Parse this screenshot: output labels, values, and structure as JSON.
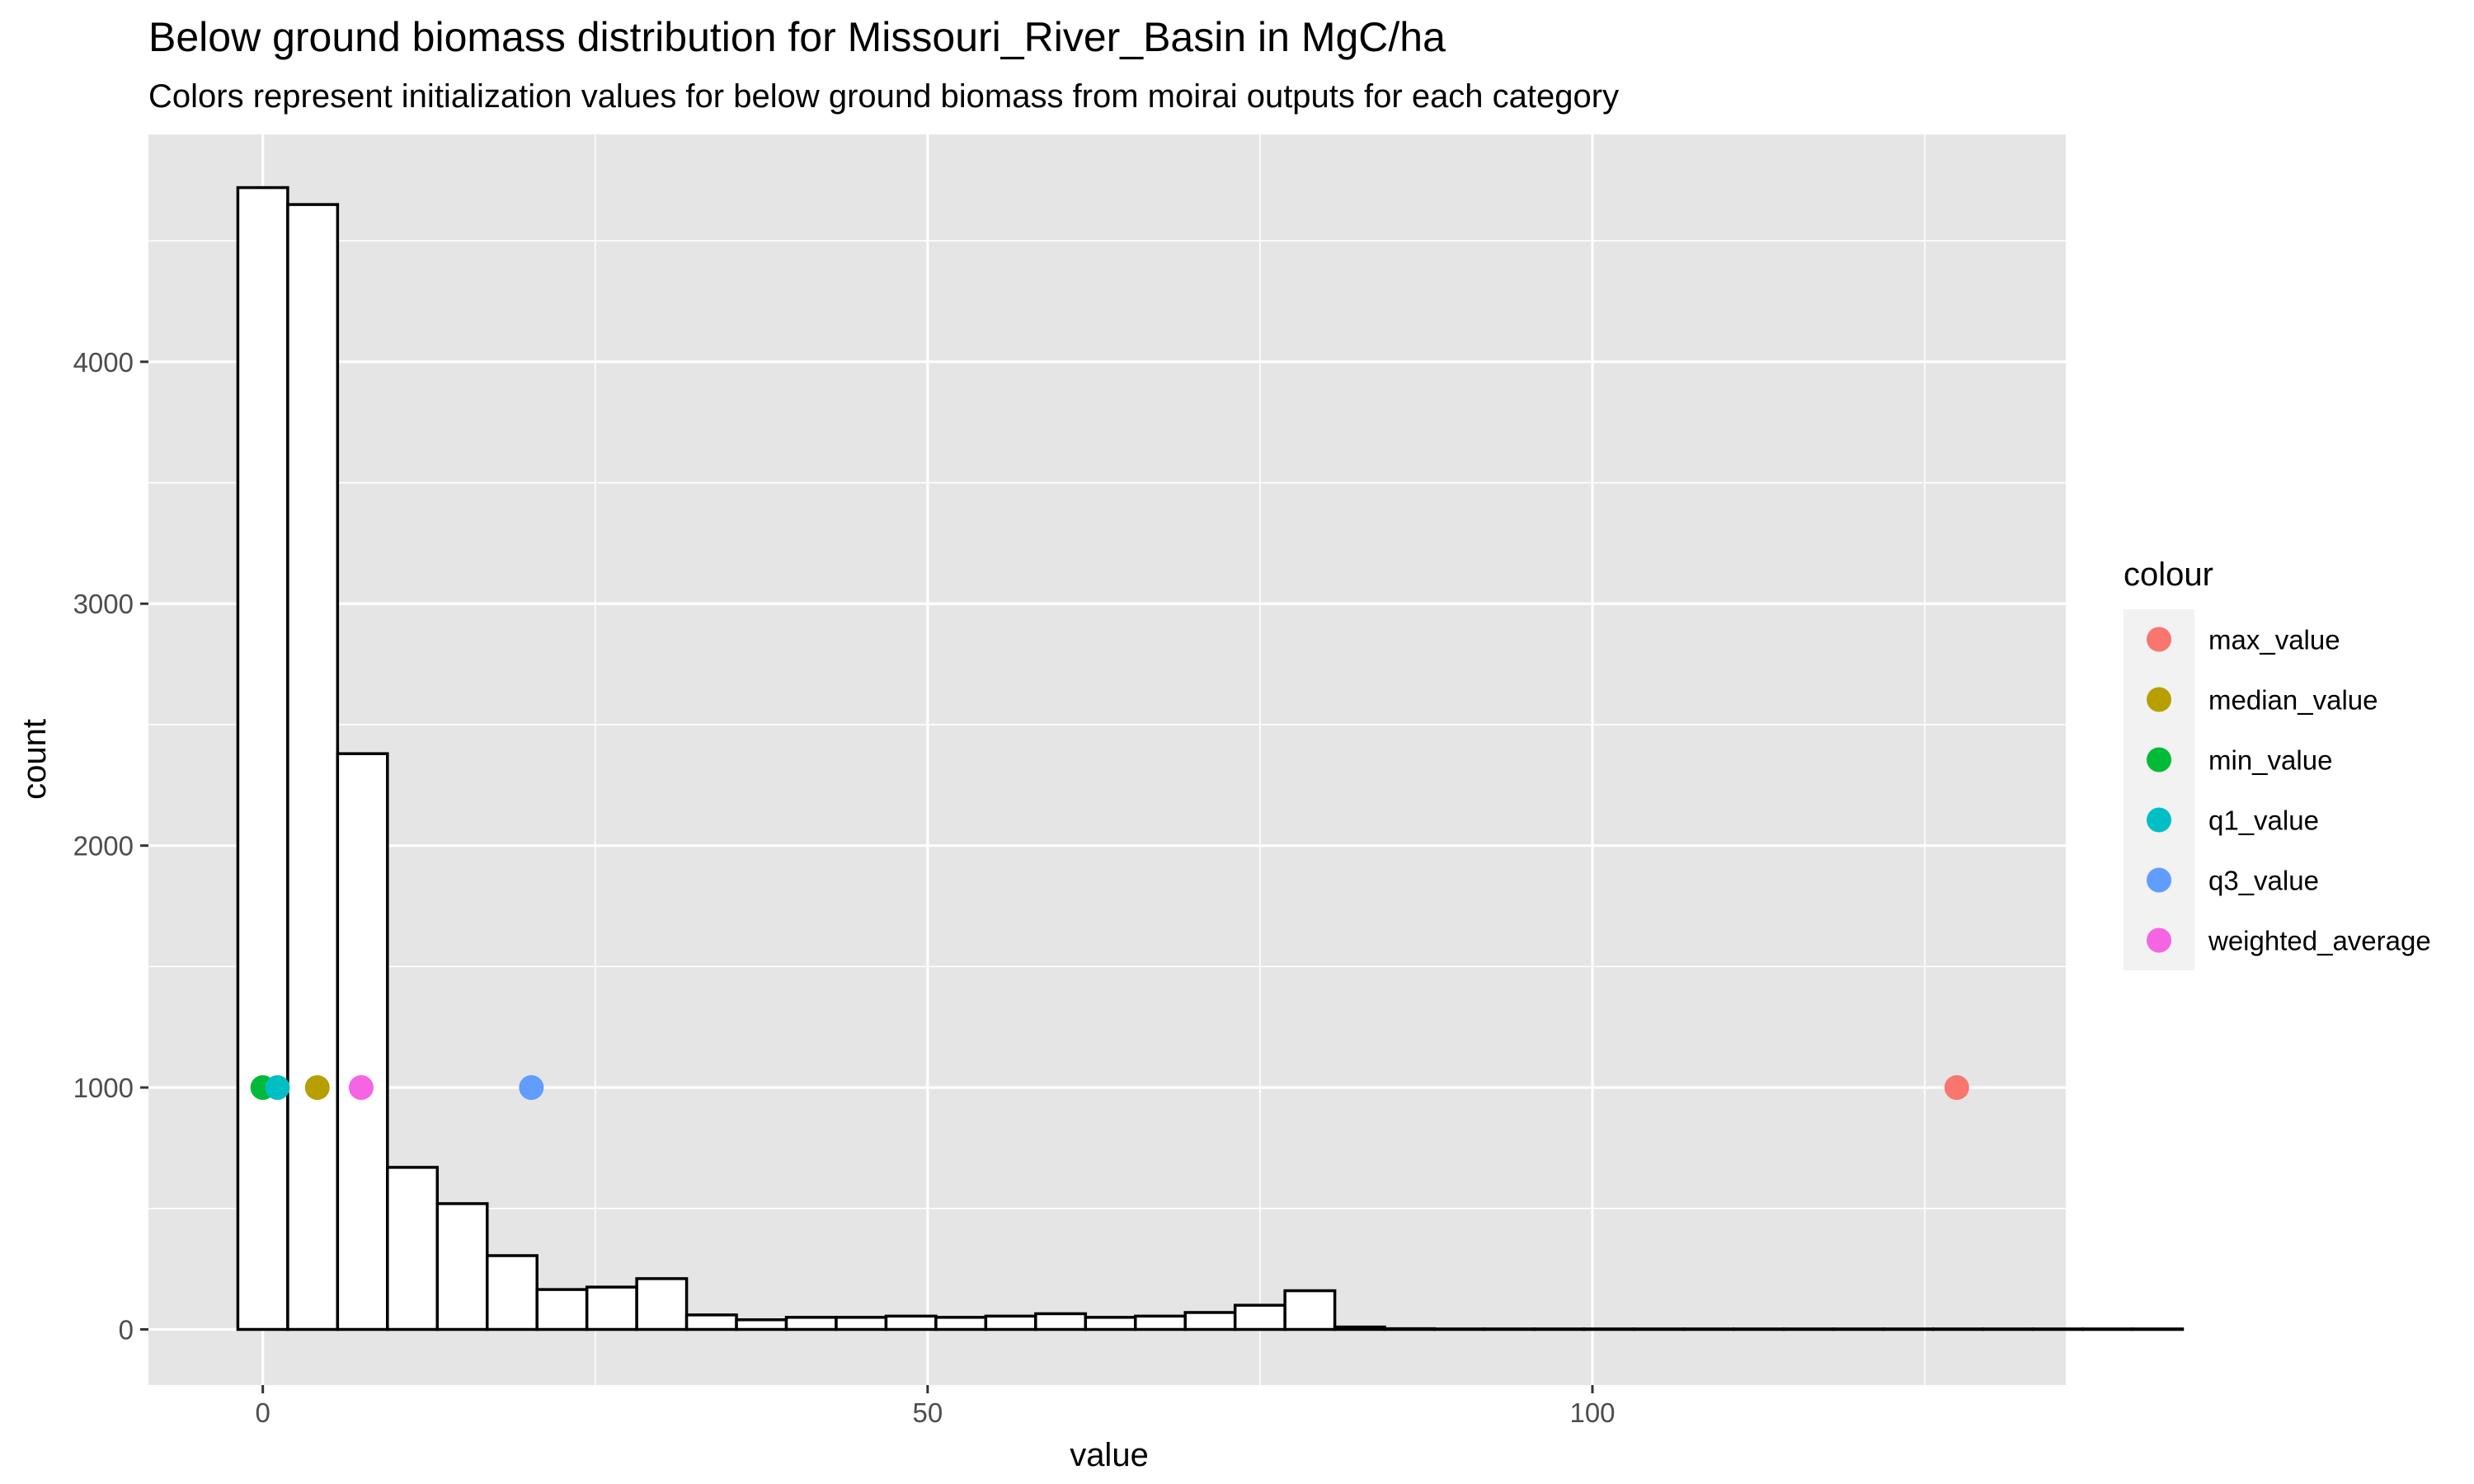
{
  "chart_data": {
    "type": "histogram",
    "title": "Below ground biomass distribution for Missouri_River_Basin in MgC/ha",
    "subtitle": "Colors represent initialization values for below ground biomass from moirai outputs for each category",
    "xlabel": "value",
    "ylabel": "count",
    "xlim": [
      -8.6,
      135.6
    ],
    "ylim": [
      -230,
      4940
    ],
    "x_ticks": [
      0,
      50,
      100
    ],
    "y_ticks": [
      0,
      1000,
      2000,
      3000,
      4000
    ],
    "x_tick_labels": [
      "0",
      "50",
      "100"
    ],
    "y_tick_labels": [
      "0",
      "1000",
      "2000",
      "3000",
      "4000"
    ],
    "bin_width": 3.75,
    "bin_start": -1.875,
    "counts": [
      4720,
      4650,
      2380,
      670,
      520,
      305,
      165,
      175,
      210,
      60,
      40,
      50,
      50,
      55,
      50,
      55,
      65,
      50,
      55,
      70,
      100,
      160,
      10,
      3,
      2,
      2,
      2,
      2,
      2,
      2,
      2,
      2,
      2,
      2,
      2,
      2,
      2,
      2,
      2
    ],
    "bar_fill": "#ffffff",
    "bar_stroke": "#000000",
    "panel_background": "#e5e5e5",
    "grid": true,
    "grid_color": "#ffffff",
    "legend": {
      "title": "colour",
      "position": "right"
    },
    "points": [
      {
        "name": "max_value",
        "x": 127.4,
        "y": 1000,
        "color": "#F8766D"
      },
      {
        "name": "median_value",
        "x": 4.1,
        "y": 1000,
        "color": "#B79F00"
      },
      {
        "name": "min_value",
        "x": 0.0,
        "y": 1000,
        "color": "#00BA38"
      },
      {
        "name": "q1_value",
        "x": 1.1,
        "y": 1000,
        "color": "#00BFC4"
      },
      {
        "name": "q3_value",
        "x": 20.2,
        "y": 1000,
        "color": "#619CFF"
      },
      {
        "name": "weighted_average",
        "x": 7.4,
        "y": 1000,
        "color": "#F564E3"
      }
    ]
  }
}
